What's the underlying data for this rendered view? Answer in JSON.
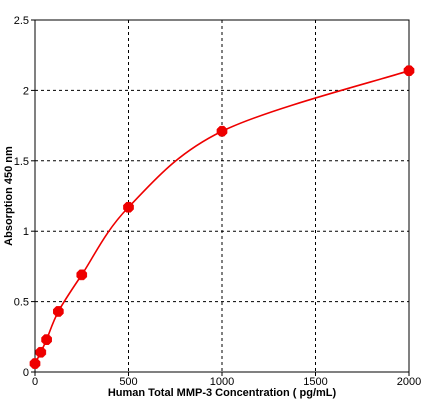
{
  "chart_data": {
    "type": "scatter",
    "title": "",
    "xlabel": "Human Total MMP-3  Concentration ( pg/mL)",
    "ylabel": "Absorption 450 nm",
    "xlim": [
      0,
      2000
    ],
    "ylim": [
      0,
      2.5
    ],
    "x_ticks": [
      "0",
      "500",
      "1000",
      "1500",
      "2000"
    ],
    "x_tick_values": [
      0,
      500,
      1000,
      1500,
      2000
    ],
    "y_ticks": [
      "0",
      "0.5",
      "1",
      "1.5",
      "2",
      "2.5"
    ],
    "y_tick_values": [
      0,
      0.5,
      1,
      1.5,
      2,
      2.5
    ],
    "grid": true,
    "series": [
      {
        "points": [
          {
            "x": 0,
            "y": 0.06
          },
          {
            "x": 31,
            "y": 0.14
          },
          {
            "x": 62,
            "y": 0.23
          },
          {
            "x": 125,
            "y": 0.43
          },
          {
            "x": 250,
            "y": 0.69
          },
          {
            "x": 500,
            "y": 1.17
          },
          {
            "x": 1000,
            "y": 1.71
          },
          {
            "x": 2000,
            "y": 2.14
          }
        ],
        "color": "#ee0000",
        "marker": "filled-octagon",
        "fit_line": "smooth-curve"
      }
    ]
  }
}
